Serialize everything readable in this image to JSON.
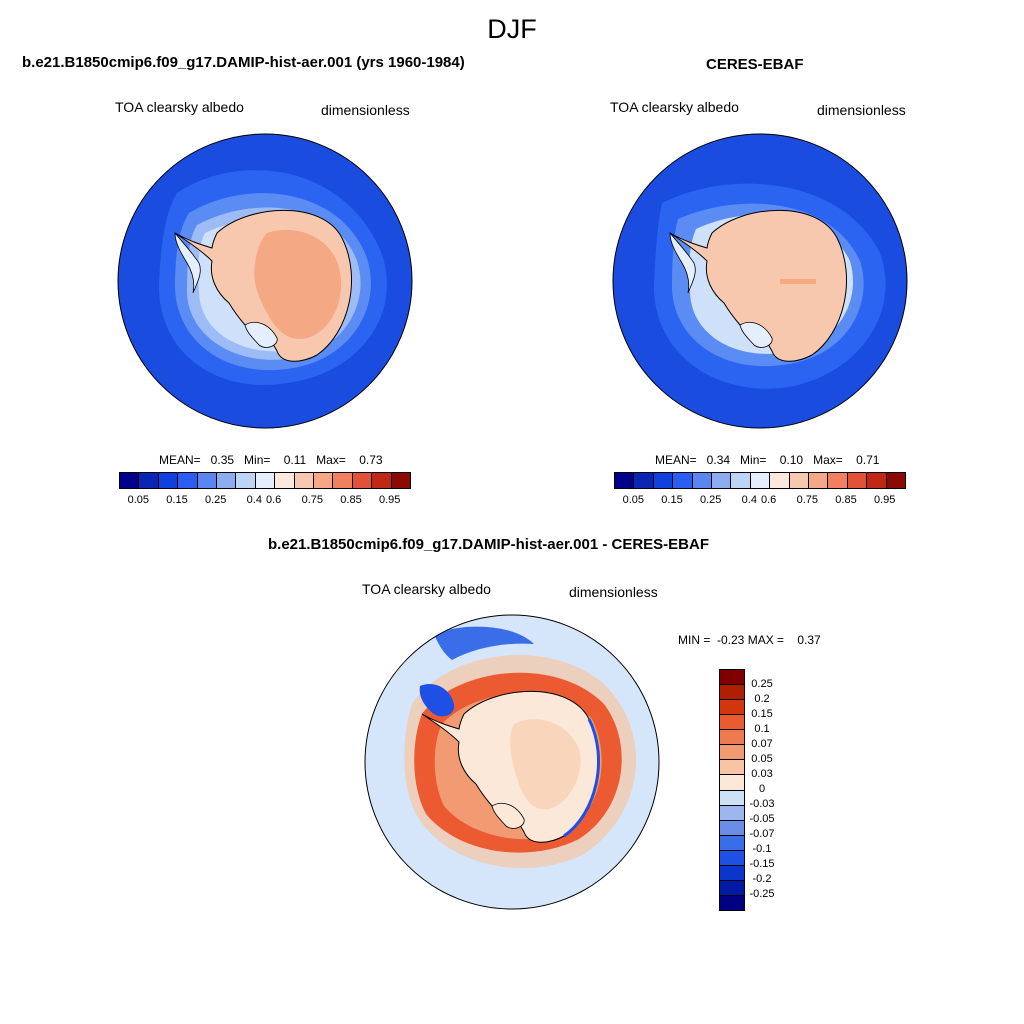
{
  "title": "DJF",
  "colors": {
    "abs_scale": [
      "#00008c",
      "#0a24b4",
      "#1240dc",
      "#2a5ef0",
      "#5a86f2",
      "#8cacf0",
      "#bcd4f6",
      "#e4eefc",
      "#fce8dc",
      "#f8c8ae",
      "#f4a884",
      "#f0805e",
      "#e25238",
      "#c02814",
      "#8c0a04"
    ],
    "diff_scale": [
      "#000080",
      "#001aa8",
      "#0a36cc",
      "#1e50e6",
      "#3a6ee8",
      "#6a8ee8",
      "#9cb6ee",
      "#cce0f8",
      "#fbe8d8",
      "#f7c4a4",
      "#f29a72",
      "#ee7a52",
      "#ec5a32",
      "#d2360c",
      "#b01e04",
      "#800000"
    ]
  },
  "panels": [
    {
      "title": "b.e21.B1850cmip6.f09_g17.DAMIP-hist-aer.001 (yrs 1960-1984)",
      "variable": "TOA clearsky albedo",
      "units": "dimensionless",
      "stats": "MEAN=   0.35   Min=    0.11   Max=    0.73",
      "colorbar_labels": [
        "0.05",
        "0.15",
        "0.25",
        "0.4",
        "0.6",
        "0.75",
        "0.85",
        "0.95"
      ]
    },
    {
      "title": "CERES-EBAF",
      "variable": "TOA clearsky albedo",
      "units": "dimensionless",
      "stats": "MEAN=   0.34   Min=    0.10   Max=    0.71",
      "colorbar_labels": [
        "0.05",
        "0.15",
        "0.25",
        "0.4",
        "0.6",
        "0.75",
        "0.85",
        "0.95"
      ]
    }
  ],
  "diff": {
    "title": "b.e21.B1850cmip6.f09_g17.DAMIP-hist-aer.001 - CERES-EBAF",
    "variable": "TOA clearsky albedo",
    "units": "dimensionless",
    "stats": "MIN =  -0.23 MAX =    0.37",
    "colorbar_labels": [
      "0.25",
      "0.2",
      "0.15",
      "0.1",
      "0.07",
      "0.05",
      "0.03",
      "0",
      "-0.03",
      "-0.05",
      "-0.07",
      "-0.1",
      "-0.15",
      "-0.2",
      "-0.25"
    ]
  }
}
